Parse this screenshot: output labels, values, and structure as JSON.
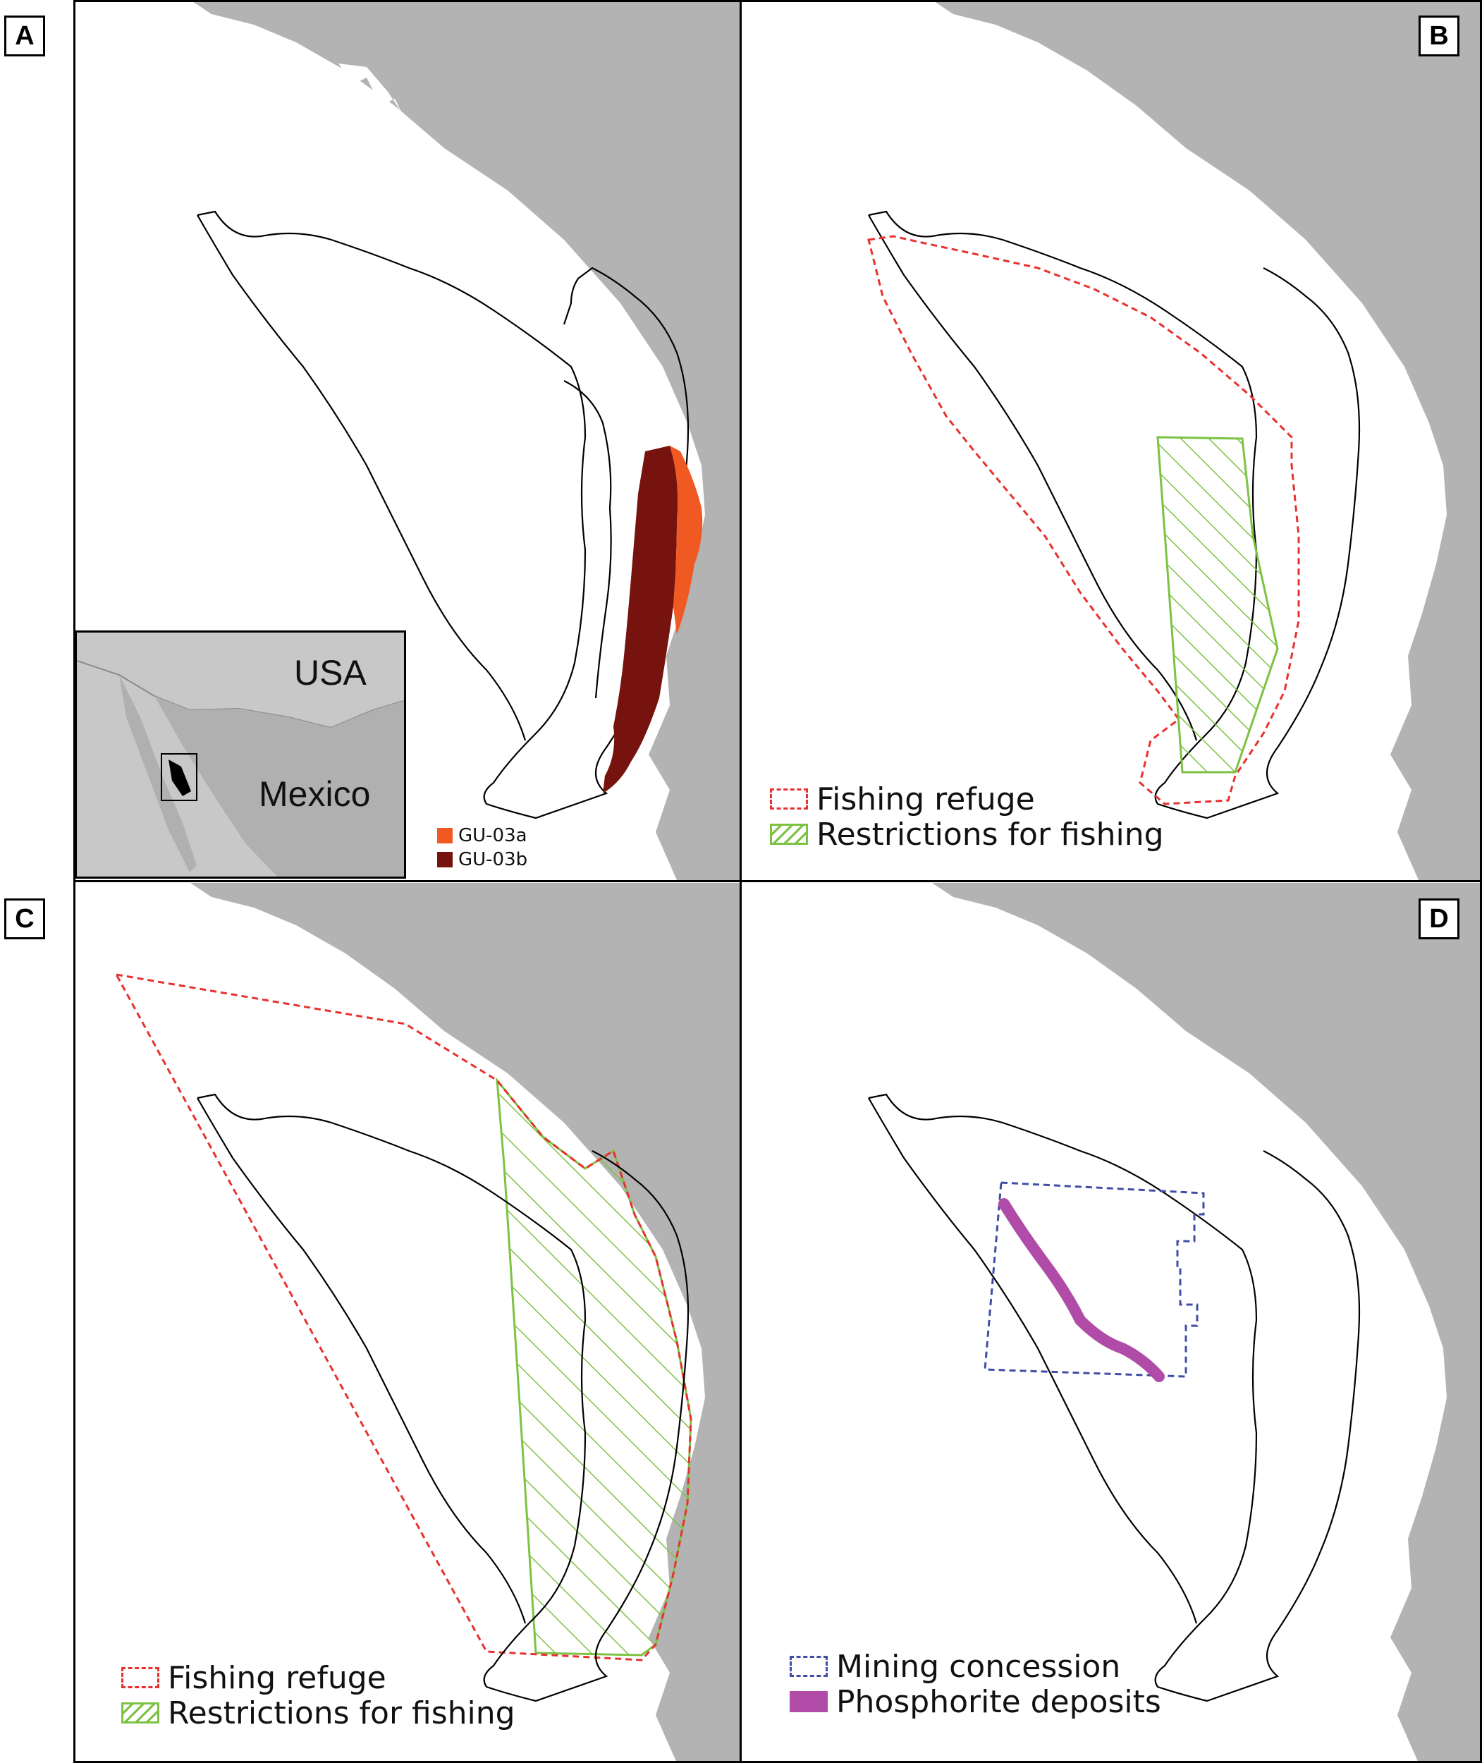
{
  "panels": {
    "a": {
      "tag": "A"
    },
    "b": {
      "tag": "B"
    },
    "c": {
      "tag": "C"
    },
    "d": {
      "tag": "D"
    }
  },
  "inset": {
    "usa_label": "USA",
    "mexico_label": "Mexico"
  },
  "legend_a": {
    "items": [
      {
        "label": "GU-03a",
        "color": "#f05a22"
      },
      {
        "label": "GU-03b",
        "color": "#76130f"
      }
    ]
  },
  "legend_b": {
    "items": [
      {
        "label": "Fishing refuge",
        "style": "dashed",
        "color": "#e8312e"
      },
      {
        "label": "Restrictions for fishing",
        "style": "hatched",
        "color": "#7dc242"
      }
    ]
  },
  "legend_c": {
    "items": [
      {
        "label": "Fishing refuge",
        "style": "dashed",
        "color": "#e8312e"
      },
      {
        "label": "Restrictions for fishing",
        "style": "hatched",
        "color": "#7dc242"
      }
    ]
  },
  "legend_d": {
    "items": [
      {
        "label": "Mining concession",
        "style": "dashed",
        "color": "#3f4da6"
      },
      {
        "label": "Phosphorite deposits",
        "style": "solid",
        "color": "#b04ca8"
      }
    ]
  },
  "colors": {
    "land": "#b3b3b3",
    "ocean": "#ffffff",
    "outline": "#000000"
  }
}
